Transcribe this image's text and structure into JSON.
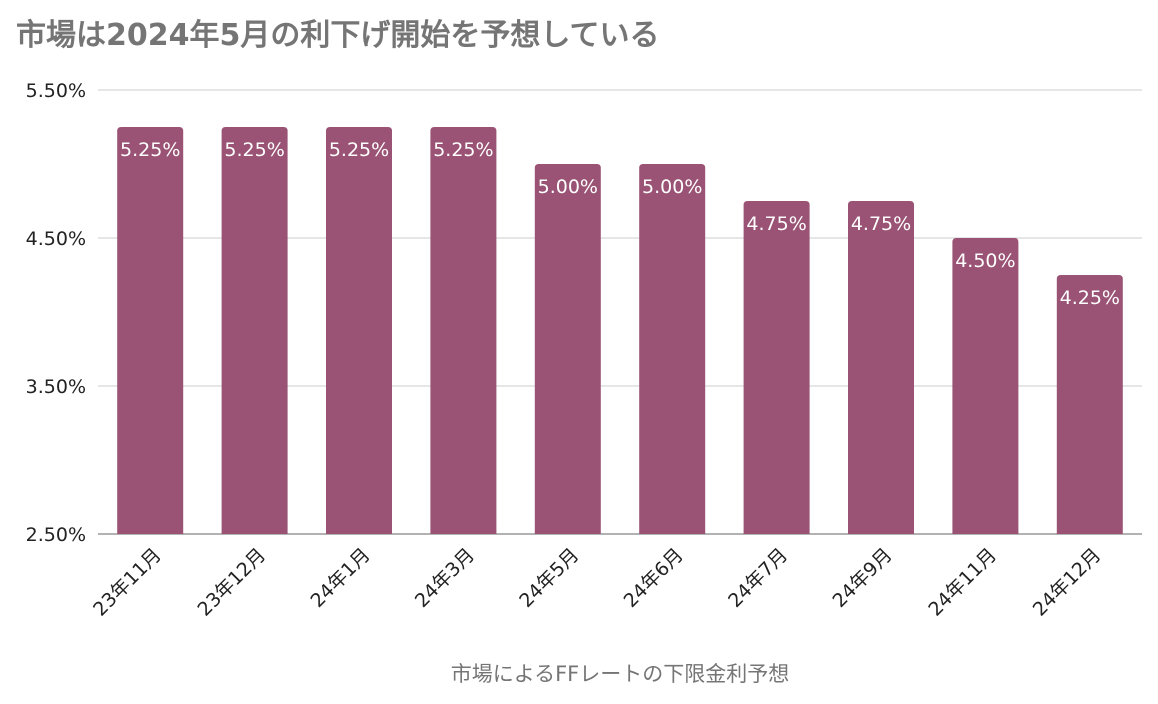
{
  "chart_data": {
    "type": "bar",
    "title": "市場は2024年5月の利下げ開始を予想している",
    "xlabel": "市場によるFFレートの下限金利予想",
    "ylabel": "",
    "categories": [
      "23年11月",
      "23年12月",
      "24年1月",
      "24年3月",
      "24年5月",
      "24年6月",
      "24年7月",
      "24年9月",
      "24年11月",
      "24年12月"
    ],
    "values": [
      5.25,
      5.25,
      5.25,
      5.25,
      5.0,
      5.0,
      4.75,
      4.75,
      4.5,
      4.25
    ],
    "data_labels": [
      "5.25%",
      "5.25%",
      "5.25%",
      "5.25%",
      "5.00%",
      "5.00%",
      "4.75%",
      "4.75%",
      "4.50%",
      "4.25%"
    ],
    "yticks": [
      2.5,
      3.5,
      4.5,
      5.5
    ],
    "ytick_labels": [
      "2.50%",
      "3.50%",
      "4.50%",
      "5.50%"
    ],
    "ylim": [
      2.5,
      5.5
    ],
    "grid": true,
    "legend": "none",
    "bar_color": "#9a5374",
    "grid_color": "#cccccc",
    "label_color": "#ffffff"
  }
}
